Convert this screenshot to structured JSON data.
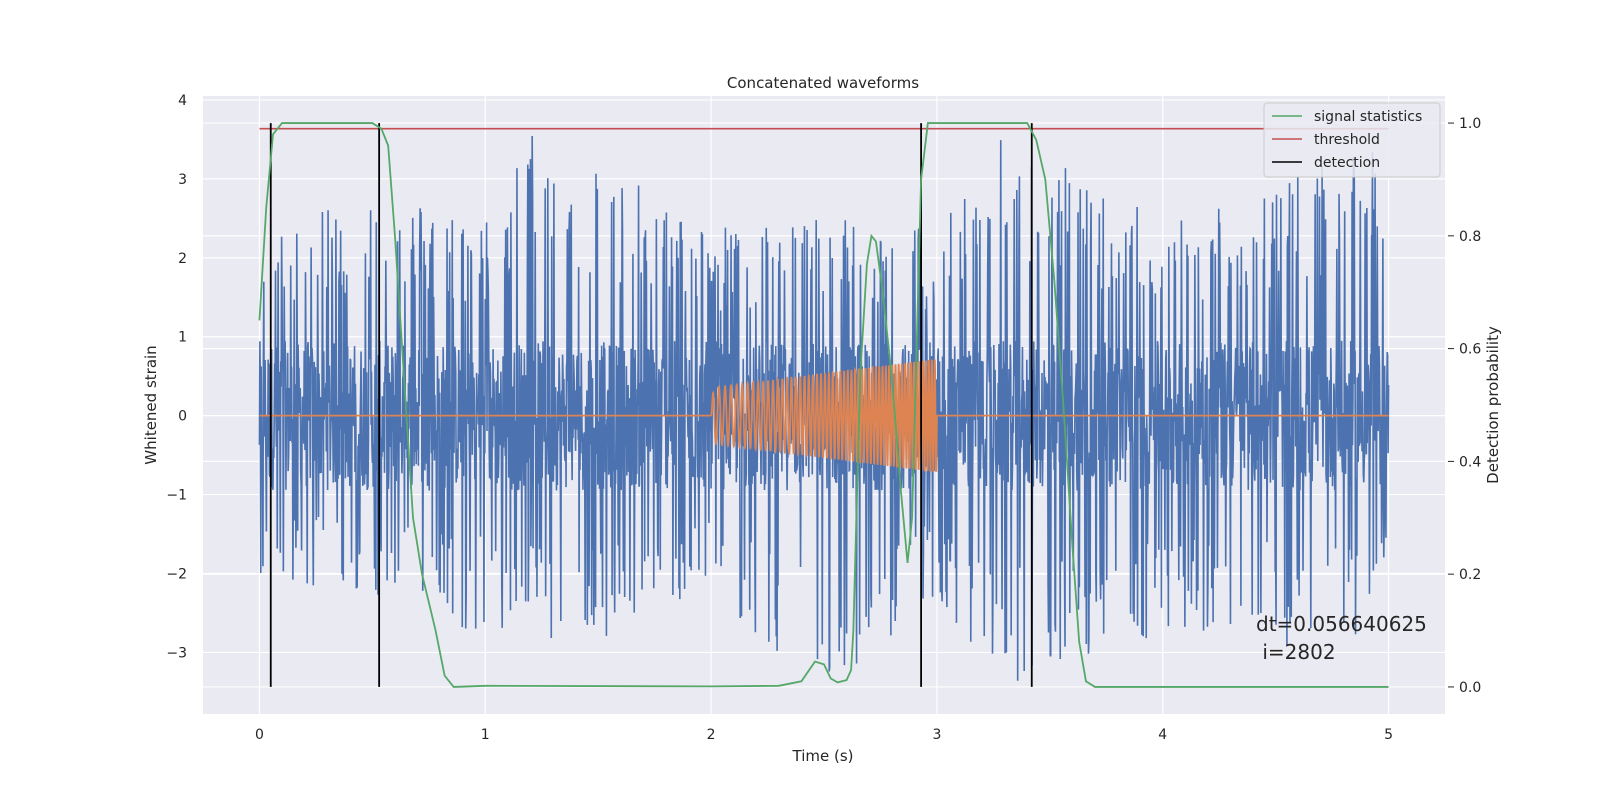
{
  "chart_data": {
    "type": "line",
    "title": "Concatenated waveforms",
    "xlabel": "Time (s)",
    "ylabel": "Whitened strain",
    "y2label": "Detection probability",
    "xlim": [
      -0.25,
      5.25
    ],
    "ylim": [
      -3.78,
      4.05
    ],
    "y2lim": [
      -0.048,
      1.048
    ],
    "grid": true,
    "legend_position": "top-right",
    "x_ticks": [
      0,
      1,
      2,
      3,
      4,
      5
    ],
    "y_ticks": [
      -3,
      -2,
      -1,
      0,
      1,
      2,
      3,
      4
    ],
    "y2_ticks": [
      0.0,
      0.2,
      0.4,
      0.6,
      0.8,
      1.0
    ],
    "x_tick_labels": [
      "0",
      "1",
      "2",
      "3",
      "4",
      "5"
    ],
    "y_tick_labels": [
      "−3",
      "−2",
      "−1",
      "0",
      "1",
      "2",
      "3",
      "4"
    ],
    "y2_tick_labels": [
      "0.0",
      "0.2",
      "0.4",
      "0.6",
      "0.8",
      "1.0"
    ],
    "colors": {
      "noise": "#4c72b0",
      "injection": "#dd8452",
      "signal": "#55a868",
      "threshold": "#c44e52",
      "detection": "#000000",
      "background": "#eaeaf2",
      "grid": "#ffffff"
    },
    "legend": [
      "signal statistics",
      "threshold",
      "detection"
    ],
    "series": [
      {
        "name": "whitened strain",
        "axis": "left",
        "x_range": [
          0,
          5
        ],
        "envelope_upper": [
          [
            0,
            2.2
          ],
          [
            0.5,
            2.9
          ],
          [
            1.0,
            2.5
          ],
          [
            1.22,
            3.7
          ],
          [
            2.0,
            2.4
          ],
          [
            2.5,
            2.6
          ],
          [
            3.0,
            2.4
          ],
          [
            3.3,
            3.6
          ],
          [
            4.0,
            2.5
          ],
          [
            4.95,
            3.4
          ],
          [
            5.0,
            1.2
          ]
        ],
        "envelope_lower": [
          [
            0,
            -2.1
          ],
          [
            0.5,
            -2.4
          ],
          [
            1.0,
            -2.8
          ],
          [
            1.3,
            -3.05
          ],
          [
            2.0,
            -2.3
          ],
          [
            2.5,
            -3.5
          ],
          [
            3.0,
            -2.3
          ],
          [
            3.27,
            -3.45
          ],
          [
            4.0,
            -2.8
          ],
          [
            4.95,
            -3.0
          ],
          [
            5.0,
            -1.5
          ]
        ]
      },
      {
        "name": "injected signal",
        "axis": "left",
        "baseline": 0,
        "chirp_start": 2.0,
        "chirp_end": 3.0,
        "amplitude": [
          0.35,
          0.72
        ]
      },
      {
        "name": "signal statistics",
        "axis": "right",
        "points": [
          [
            0,
            0.65
          ],
          [
            0.03,
            0.85
          ],
          [
            0.06,
            0.98
          ],
          [
            0.1,
            1.0
          ],
          [
            0.5,
            1.0
          ],
          [
            0.54,
            0.99
          ],
          [
            0.57,
            0.96
          ],
          [
            0.6,
            0.8
          ],
          [
            0.64,
            0.55
          ],
          [
            0.68,
            0.3
          ],
          [
            0.72,
            0.2
          ],
          [
            0.75,
            0.15
          ],
          [
            0.78,
            0.1
          ],
          [
            0.8,
            0.06
          ],
          [
            0.82,
            0.02
          ],
          [
            0.86,
            0.0
          ],
          [
            1.0,
            0.002
          ],
          [
            2.0,
            0.001
          ],
          [
            2.3,
            0.002
          ],
          [
            2.4,
            0.01
          ],
          [
            2.46,
            0.045
          ],
          [
            2.5,
            0.04
          ],
          [
            2.53,
            0.015
          ],
          [
            2.56,
            0.008
          ],
          [
            2.6,
            0.012
          ],
          [
            2.62,
            0.03
          ],
          [
            2.63,
            0.1
          ],
          [
            2.66,
            0.55
          ],
          [
            2.69,
            0.75
          ],
          [
            2.71,
            0.8
          ],
          [
            2.73,
            0.79
          ],
          [
            2.76,
            0.7
          ],
          [
            2.8,
            0.55
          ],
          [
            2.84,
            0.35
          ],
          [
            2.87,
            0.22
          ],
          [
            2.89,
            0.3
          ],
          [
            2.91,
            0.6
          ],
          [
            2.93,
            0.9
          ],
          [
            2.96,
            1.0
          ],
          [
            3.0,
            1.0
          ],
          [
            3.4,
            1.0
          ],
          [
            3.44,
            0.97
          ],
          [
            3.48,
            0.9
          ],
          [
            3.52,
            0.72
          ],
          [
            3.56,
            0.5
          ],
          [
            3.6,
            0.25
          ],
          [
            3.63,
            0.08
          ],
          [
            3.66,
            0.01
          ],
          [
            3.7,
            0.0
          ],
          [
            5.0,
            0.0
          ]
        ]
      },
      {
        "name": "threshold",
        "axis": "right",
        "value": 0.99,
        "x_range": [
          0,
          5
        ]
      },
      {
        "name": "detection",
        "axis": "right",
        "x": [
          0.05,
          0.53,
          2.93,
          3.42
        ],
        "y_range": [
          0,
          1.0
        ]
      }
    ],
    "annotation": {
      "text_line1": "dt=0.056640625",
      "text_line2": " i=2802"
    }
  }
}
